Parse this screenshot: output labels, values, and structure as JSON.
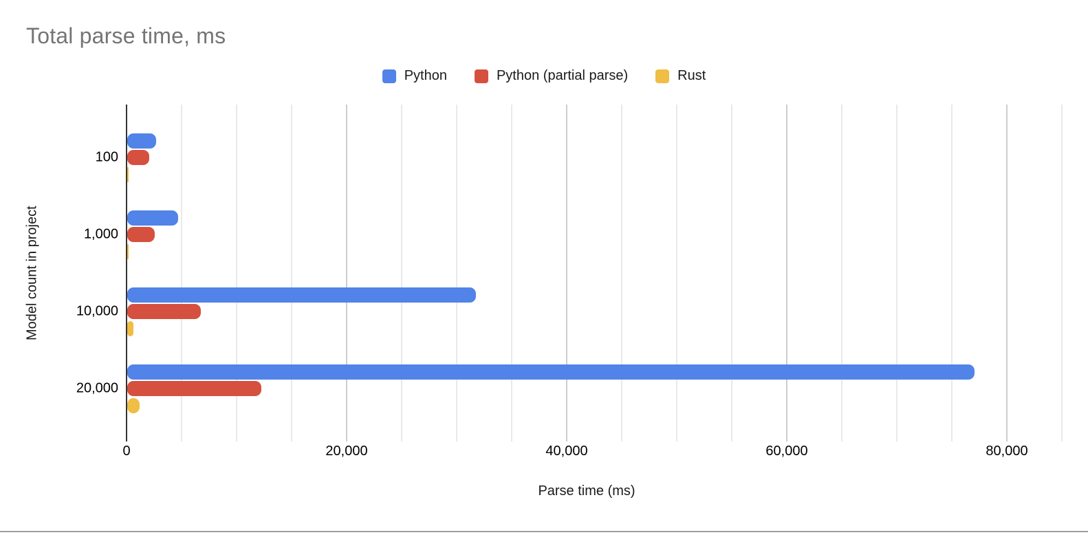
{
  "page": {
    "background_color": "#ffffff",
    "bottom_border_color": "#9e9e9e"
  },
  "chart_data": {
    "type": "bar",
    "orientation": "horizontal",
    "title": "Total parse time, ms",
    "title_color": "#757575",
    "xlabel": "Parse time (ms)",
    "ylabel": "Model count in project",
    "categories": [
      "100",
      "1,000",
      "10,000",
      "20,000"
    ],
    "series": [
      {
        "name": "Python",
        "color": "#5183e8",
        "values": [
          2600,
          4600,
          31700,
          77000
        ]
      },
      {
        "name": "Python (partial parse)",
        "color": "#d5503f",
        "values": [
          2000,
          2500,
          6700,
          12200
        ]
      },
      {
        "name": "Rust",
        "color": "#f0bd45",
        "values": [
          120,
          150,
          550,
          1150
        ]
      }
    ],
    "legend_position": "top",
    "grid": true,
    "x_axis": {
      "min": 0,
      "max": 87375,
      "major_tick_interval": 20000,
      "minor_gridline_interval": 5000,
      "tick_values": [
        0,
        20000,
        40000,
        60000,
        80000
      ],
      "tick_labels": [
        "0",
        "20,000",
        "40,000",
        "60,000",
        "80,000"
      ],
      "minor_gridline_color": "#e9e9e9",
      "major_gridline_color": "#cdcdcd",
      "axis_line_color": "#333333"
    }
  }
}
